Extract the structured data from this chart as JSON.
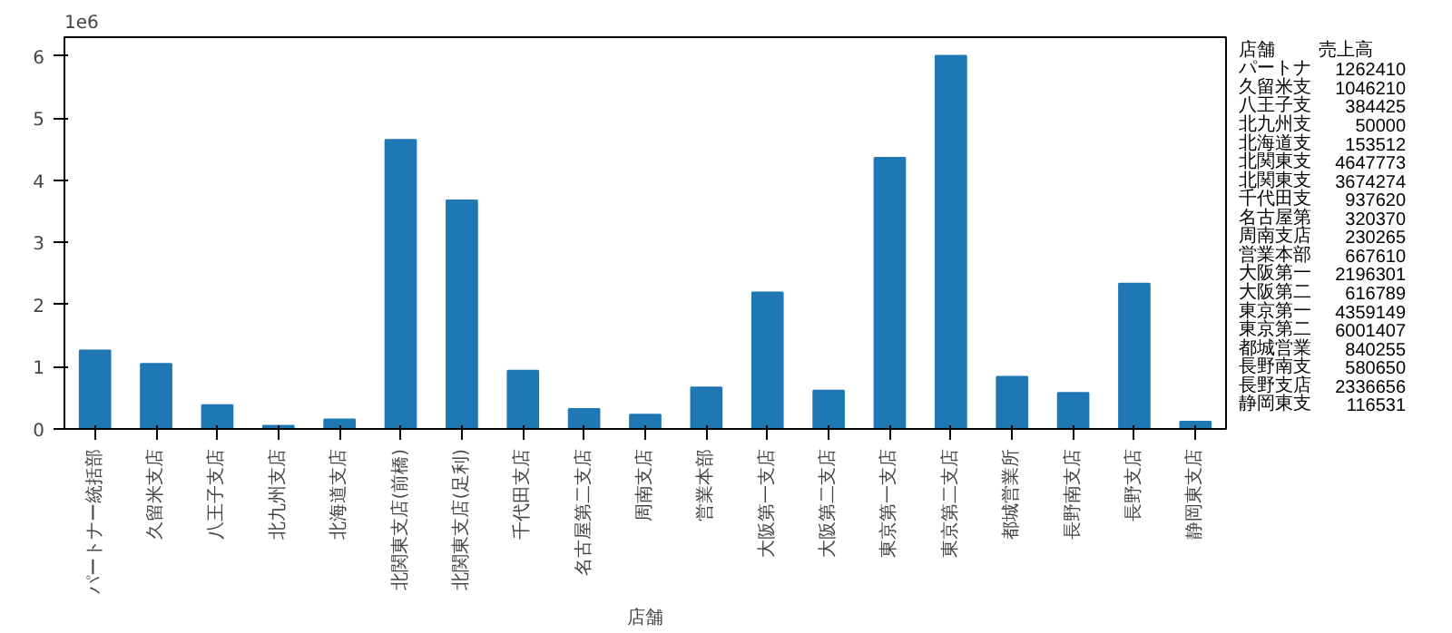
{
  "chart_data": {
    "type": "bar",
    "xlabel": "店舗",
    "categories": [
      "パートナー統括部",
      "久留米支店",
      "八王子支店",
      "北九州支店",
      "北海道支店",
      "北関東支店(前橋)",
      "北関東支店(足利)",
      "千代田支店",
      "名古屋第二支店",
      "周南支店",
      "営業本部",
      "大阪第一支店",
      "大阪第二支店",
      "東京第一支店",
      "東京第二支店",
      "都城営業所",
      "長野南支店",
      "長野支店",
      "静岡東支店"
    ],
    "values": [
      1.26241,
      1.04621,
      0.384425,
      0.05,
      0.153512,
      4.647773,
      3.674274,
      0.93762,
      0.32037,
      0.230265,
      0.66761,
      2.196301,
      0.616789,
      4.359149,
      6.001407,
      0.840255,
      0.58065,
      2.336656,
      0.116531
    ],
    "color": "#1f77b4",
    "ylim": [
      0,
      6.3
    ],
    "yticks": [
      0,
      1,
      2,
      3,
      4,
      5,
      6
    ],
    "grid": false,
    "annotations": [
      "1e6",
      "店舗",
      "売上高",
      "パートナ",
      "久留米支",
      "八王子支",
      "北九州支",
      "北海道支",
      "北関東支",
      "北関東支",
      "千代田支",
      "名古屋第",
      "周南支店",
      "営業本部",
      "大阪第一",
      "大阪第二",
      "東京第一",
      "東京第二",
      "都城営業",
      "長野南支",
      "長野支店",
      "静岡東支",
      "1262410",
      "1046210",
      "384425",
      "50000",
      "153512",
      "4647773",
      "3674274",
      "937620",
      "320370",
      "230265",
      "667610",
      "2196301",
      "616789",
      "4359149",
      "6001407",
      "840255",
      "580650",
      "2336656",
      "116531"
    ]
  }
}
